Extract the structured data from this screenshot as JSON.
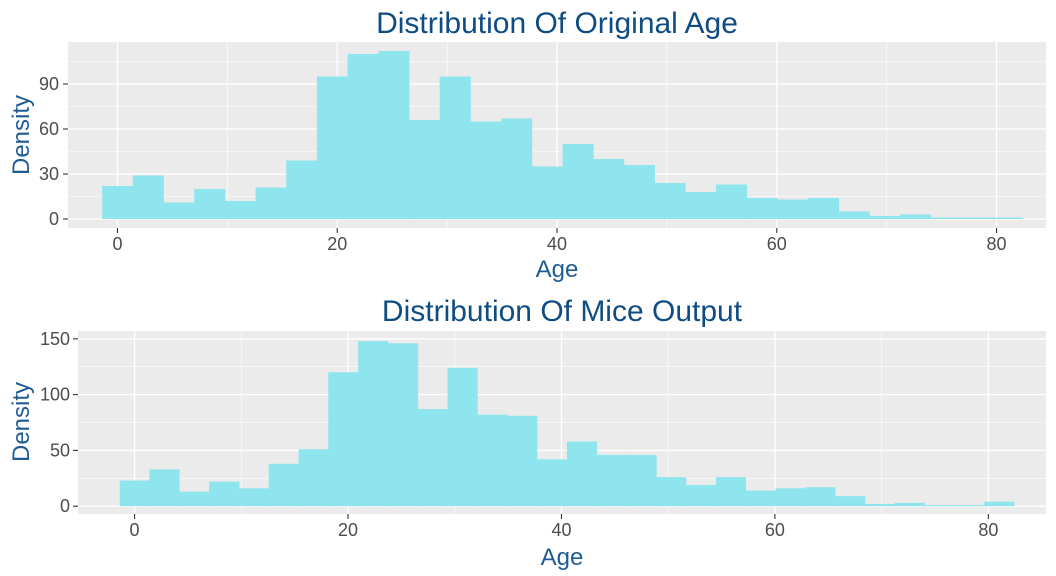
{
  "figure": {
    "panel_background": "#ebebeb",
    "grid_color": "#ffffff",
    "bar_color": "#8ee5ee",
    "title_color": "#0f4c81",
    "axis_title_color": "#1f5c94",
    "tick_color": "#4d4d4d"
  },
  "chart_data": [
    {
      "type": "bar",
      "title": "Distribution Of Original Age",
      "xlabel": "Age",
      "ylabel": "Density",
      "xlim": [
        -4.5,
        84.5
      ],
      "ylim": [
        -6,
        118
      ],
      "xticks": [
        0,
        20,
        40,
        60,
        80
      ],
      "yticks": [
        0,
        30,
        60,
        90
      ],
      "grid": true,
      "bin_width": 2.793,
      "bin_centers": [
        0.0,
        2.79,
        5.59,
        8.38,
        11.17,
        13.97,
        16.76,
        19.55,
        22.34,
        25.14,
        27.93,
        30.72,
        33.52,
        36.31,
        39.1,
        41.9,
        44.69,
        47.48,
        50.27,
        53.07,
        55.86,
        58.65,
        61.45,
        64.24,
        67.03,
        69.83,
        72.62,
        75.41,
        78.2,
        81.0
      ],
      "values": [
        22,
        29,
        11,
        20,
        12,
        21,
        39,
        95,
        110,
        112,
        66,
        95,
        65,
        67,
        35,
        50,
        40,
        36,
        24,
        18,
        23,
        14,
        13,
        14,
        5,
        2,
        3,
        1,
        1,
        1
      ]
    },
    {
      "type": "bar",
      "title": "Distribution Of Mice Output",
      "xlabel": "Age",
      "ylabel": "Density",
      "xlim": [
        -5.3,
        85.4
      ],
      "ylim": [
        -7,
        157
      ],
      "xticks": [
        0,
        20,
        40,
        60,
        80
      ],
      "yticks": [
        0,
        50,
        100,
        150
      ],
      "grid": true,
      "bin_width": 2.793,
      "bin_centers": [
        0.0,
        2.79,
        5.59,
        8.38,
        11.17,
        13.97,
        16.76,
        19.55,
        22.34,
        25.14,
        27.93,
        30.72,
        33.52,
        36.31,
        39.1,
        41.9,
        44.69,
        47.48,
        50.27,
        53.07,
        55.86,
        58.65,
        61.45,
        64.24,
        67.03,
        69.83,
        72.62,
        75.41,
        78.2,
        81.0
      ],
      "values": [
        23,
        33,
        13,
        22,
        16,
        38,
        51,
        120,
        148,
        146,
        87,
        124,
        82,
        81,
        42,
        58,
        46,
        46,
        26,
        19,
        26,
        14,
        16,
        17,
        9,
        2,
        3,
        1,
        1,
        4
      ]
    }
  ]
}
